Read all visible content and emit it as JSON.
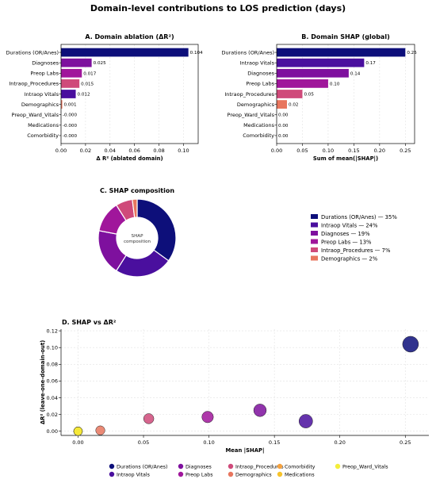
{
  "suptitle": "Domain-level contributions to LOS prediction (days)",
  "colors": {
    "Durations (OR/Anes)": "#0d0f7a",
    "Intraop Vitals": "#4a0f9e",
    "Diagnoses": "#7e109e",
    "Preop Labs": "#a0169b",
    "Intraop_Procedures": "#cf4a7a",
    "Demographics": "#e8765e",
    "Comorbidity": "#f5a13e",
    "Medications": "#f7c32a",
    "Preop_Ward_Vitals": "#f4ee3a"
  },
  "chart_data": [
    {
      "id": "A",
      "type": "bar",
      "orientation": "horizontal",
      "title": "A. Domain ablation (ΔR²)",
      "xlabel": "Δ R² (ablated domain)",
      "categories": [
        "Durations (OR/Anes)",
        "Diagnoses",
        "Preop Labs",
        "Intraop_Procedures",
        "Intraop Vitals",
        "Demographics",
        "Preop_Ward_Vitals",
        "Medications",
        "Comorbidity"
      ],
      "values": [
        0.104,
        0.025,
        0.017,
        0.015,
        0.012,
        0.001,
        0.0,
        0.0,
        0.0
      ],
      "value_labels": [
        "0.104",
        "0.025",
        "0.017",
        "0.015",
        "0.012",
        "0.001",
        "-0.000",
        "-0.000",
        "-0.000"
      ],
      "xlim": [
        0,
        0.112
      ],
      "xticks": [
        0.0,
        0.02,
        0.04,
        0.06,
        0.08,
        0.1
      ],
      "xtick_labels": [
        "0.00",
        "0.02",
        "0.04",
        "0.06",
        "0.08",
        "0.10"
      ],
      "grid": "vertical"
    },
    {
      "id": "B",
      "type": "bar",
      "orientation": "horizontal",
      "title": "B. Domain SHAP (global)",
      "xlabel": "Sum of mean(|SHAP|)",
      "categories": [
        "Durations (OR/Anes)",
        "Intraop Vitals",
        "Diagnoses",
        "Preop Labs",
        "Intraop_Procedures",
        "Demographics",
        "Preop_Ward_Vitals",
        "Medications",
        "Comorbidity"
      ],
      "values": [
        0.25,
        0.17,
        0.14,
        0.1,
        0.05,
        0.02,
        0.0,
        0.0,
        0.0
      ],
      "value_labels": [
        "0.25",
        "0.17",
        "0.14",
        "0.10",
        "0.05",
        "0.02",
        "0.00",
        "0.00",
        "0.00"
      ],
      "xlim": [
        0,
        0.268
      ],
      "xticks": [
        0.0,
        0.05,
        0.1,
        0.15,
        0.2,
        0.25
      ],
      "xtick_labels": [
        "0.00",
        "0.05",
        "0.10",
        "0.15",
        "0.20",
        "0.25"
      ],
      "grid": "vertical"
    },
    {
      "id": "C",
      "type": "pie",
      "donut": true,
      "title": "C. SHAP composition",
      "center_label": [
        "SHAP",
        "composition"
      ],
      "slices": [
        {
          "name": "Durations (OR/Anes)",
          "pct": 35,
          "legend": "Durations (OR/Anes) — 35%"
        },
        {
          "name": "Intraop Vitals",
          "pct": 24,
          "legend": "Intraop Vitals — 24%"
        },
        {
          "name": "Diagnoses",
          "pct": 19,
          "legend": "Diagnoses — 19%"
        },
        {
          "name": "Preop Labs",
          "pct": 13,
          "legend": "Preop Labs — 13%"
        },
        {
          "name": "Intraop_Procedures",
          "pct": 7,
          "legend": "Intraop_Procedures — 7%"
        },
        {
          "name": "Demographics",
          "pct": 2,
          "legend": "Demographics — 2%"
        }
      ],
      "legend_position": "right"
    },
    {
      "id": "D",
      "type": "scatter",
      "title": "D. SHAP vs ΔR²",
      "xlabel": "Mean |SHAP|",
      "ylabel": "ΔR² (leave-one-domain-out)",
      "xlim": [
        -0.013,
        0.268
      ],
      "ylim": [
        -0.005,
        0.122
      ],
      "xticks": [
        0.0,
        0.05,
        0.1,
        0.15,
        0.2,
        0.25
      ],
      "xtick_labels": [
        "0.00",
        "0.05",
        "0.10",
        "0.15",
        "0.20",
        "0.25"
      ],
      "yticks": [
        0.0,
        0.02,
        0.04,
        0.06,
        0.08,
        0.1,
        0.12
      ],
      "ytick_labels": [
        "0.00",
        "0.02",
        "0.04",
        "0.06",
        "0.08",
        "0.10",
        "0.12"
      ],
      "grid": true,
      "points": [
        {
          "name": "Durations (OR/Anes)",
          "x": 0.254,
          "y": 0.104
        },
        {
          "name": "Intraop Vitals",
          "x": 0.174,
          "y": 0.012
        },
        {
          "name": "Diagnoses",
          "x": 0.139,
          "y": 0.025
        },
        {
          "name": "Preop Labs",
          "x": 0.099,
          "y": 0.017
        },
        {
          "name": "Intraop_Procedures",
          "x": 0.054,
          "y": 0.015
        },
        {
          "name": "Demographics",
          "x": 0.017,
          "y": 0.001
        },
        {
          "name": "Comorbidity",
          "x": 0.0,
          "y": 0.0
        },
        {
          "name": "Medications",
          "x": 0.0,
          "y": 0.0
        },
        {
          "name": "Preop_Ward_Vitals",
          "x": 0.0,
          "y": 0.0
        }
      ],
      "legend": [
        "Durations (OR/Anes)",
        "Intraop Vitals",
        "Diagnoses",
        "Preop Labs",
        "Intraop_Procedures",
        "Demographics",
        "Comorbidity",
        "Medications",
        "Preop_Ward_Vitals"
      ],
      "legend_position": "bottom"
    }
  ]
}
